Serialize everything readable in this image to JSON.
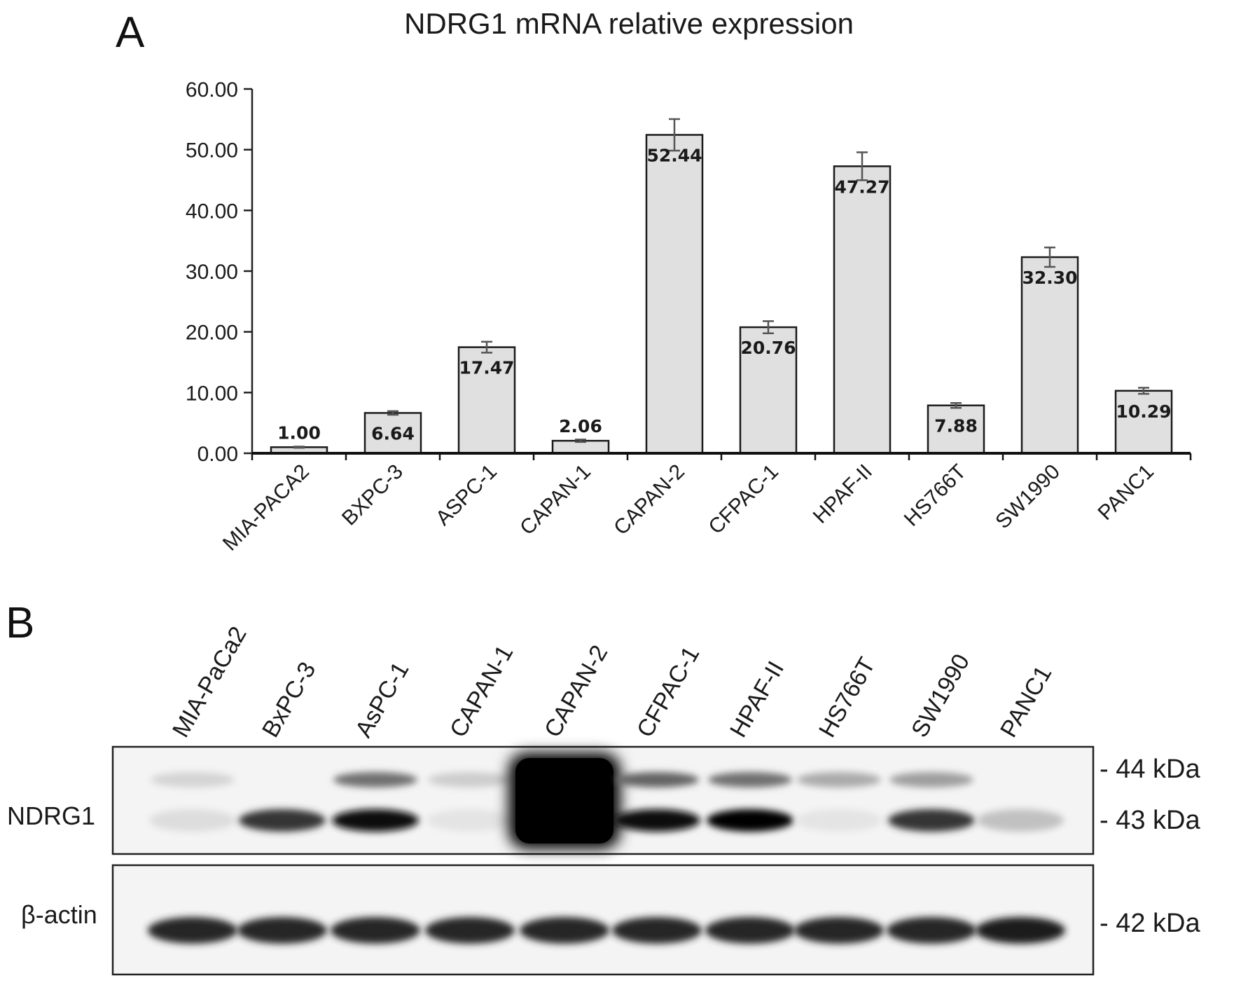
{
  "panels": {
    "a_letter": "A",
    "b_letter": "B"
  },
  "chart_data": {
    "type": "bar",
    "title": "NDRG1 mRNA relative expression",
    "xlabel": "",
    "ylabel": "",
    "ylim": [
      0,
      60
    ],
    "yticks": [
      "0.00",
      "10.00",
      "20.00",
      "30.00",
      "40.00",
      "50.00",
      "60.00"
    ],
    "grid": false,
    "bar_color": "#e0e0e0",
    "categories": [
      "MIA-PACA2",
      "BXPC-3",
      "ASPC-1",
      "CAPAN-1",
      "CAPAN-2",
      "CFPAC-1",
      "HPAF-II",
      "HS766T",
      "SW1990",
      "PANC1"
    ],
    "values": [
      1.0,
      6.64,
      17.47,
      2.06,
      52.44,
      20.76,
      47.27,
      7.88,
      32.3,
      10.29
    ],
    "value_labels": [
      "1.00",
      "6.64",
      "17.47",
      "2.06",
      "52.44",
      "20.76",
      "47.27",
      "7.88",
      "32.30",
      "10.29"
    ],
    "errors": [
      0.1,
      0.3,
      0.9,
      0.2,
      2.6,
      1.0,
      2.3,
      0.4,
      1.6,
      0.5
    ]
  },
  "western_blot": {
    "lanes": [
      "MIA-PaCa2",
      "BxPC-3",
      "AsPC-1",
      "CAPAN-1",
      "CAPAN-2",
      "CFPAC-1",
      "HPAF-II",
      "HS766T",
      "SW1990",
      "PANC1"
    ],
    "rows": [
      {
        "label": "NDRG1",
        "markers": [
          "- 44 kDa",
          "- 43 kDa"
        ],
        "upper_band_intensity": [
          0.12,
          0.0,
          0.55,
          0.15,
          1.0,
          0.6,
          0.55,
          0.3,
          0.35,
          0.0
        ],
        "lower_band_intensity": [
          0.08,
          0.8,
          0.95,
          0.05,
          1.0,
          0.95,
          1.0,
          0.05,
          0.8,
          0.2
        ]
      },
      {
        "label": "β-actin",
        "markers": [
          "- 42 kDa"
        ],
        "band_intensity": [
          0.85,
          0.85,
          0.85,
          0.85,
          0.85,
          0.85,
          0.85,
          0.85,
          0.85,
          0.9
        ]
      }
    ]
  }
}
